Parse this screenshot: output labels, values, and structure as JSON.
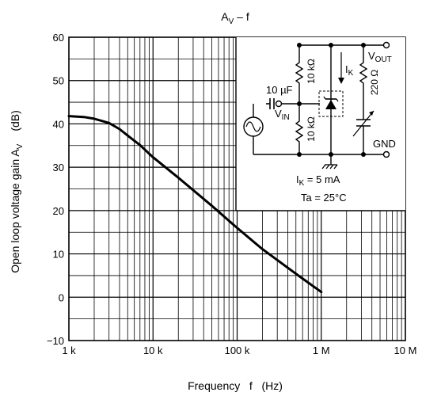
{
  "chart_data": {
    "type": "line",
    "title_main": "A",
    "title_sub": "V",
    "title_rest": " – f",
    "xlabel": "Frequency   f   (Hz)",
    "ylabel_main": "Open loop voltage gain    A",
    "ylabel_sub": "V",
    "ylabel_unit": "(dB)",
    "x_scale": "log",
    "xlim": [
      1000,
      10000000
    ],
    "ylim": [
      -10,
      60
    ],
    "grid": true,
    "x_ticks": [
      {
        "value": 1000,
        "label": "1 k"
      },
      {
        "value": 10000,
        "label": "10 k"
      },
      {
        "value": 100000,
        "label": "100 k"
      },
      {
        "value": 1000000,
        "label": "1 M"
      },
      {
        "value": 10000000,
        "label": "10 M"
      }
    ],
    "y_ticks": [
      -10,
      0,
      10,
      20,
      30,
      40,
      50,
      60
    ],
    "series": [
      {
        "x": [
          1000,
          1500,
          2000,
          3000,
          4000,
          5000,
          7000,
          10000,
          20000,
          50000,
          100000,
          200000,
          500000,
          1000000
        ],
        "y": [
          41.8,
          41.6,
          41.2,
          40.2,
          38.8,
          37.3,
          35.1,
          32.3,
          27.6,
          21.1,
          16.0,
          11.1,
          5.4,
          1.2
        ]
      }
    ]
  },
  "inset": {
    "capacitor": "10 µF",
    "vin": "V",
    "vin_sub": "IN",
    "r1": "10 kΩ",
    "r2": "10 kΩ",
    "r3": "220 Ω",
    "ik": "I",
    "ik_sub": "K",
    "vout": "V",
    "vout_sub": "OUT",
    "gnd": "GND",
    "cond1_a": "I",
    "cond1_sub": "K",
    "cond1_b": " = 5 mA",
    "cond2": "Ta = 25°C"
  }
}
